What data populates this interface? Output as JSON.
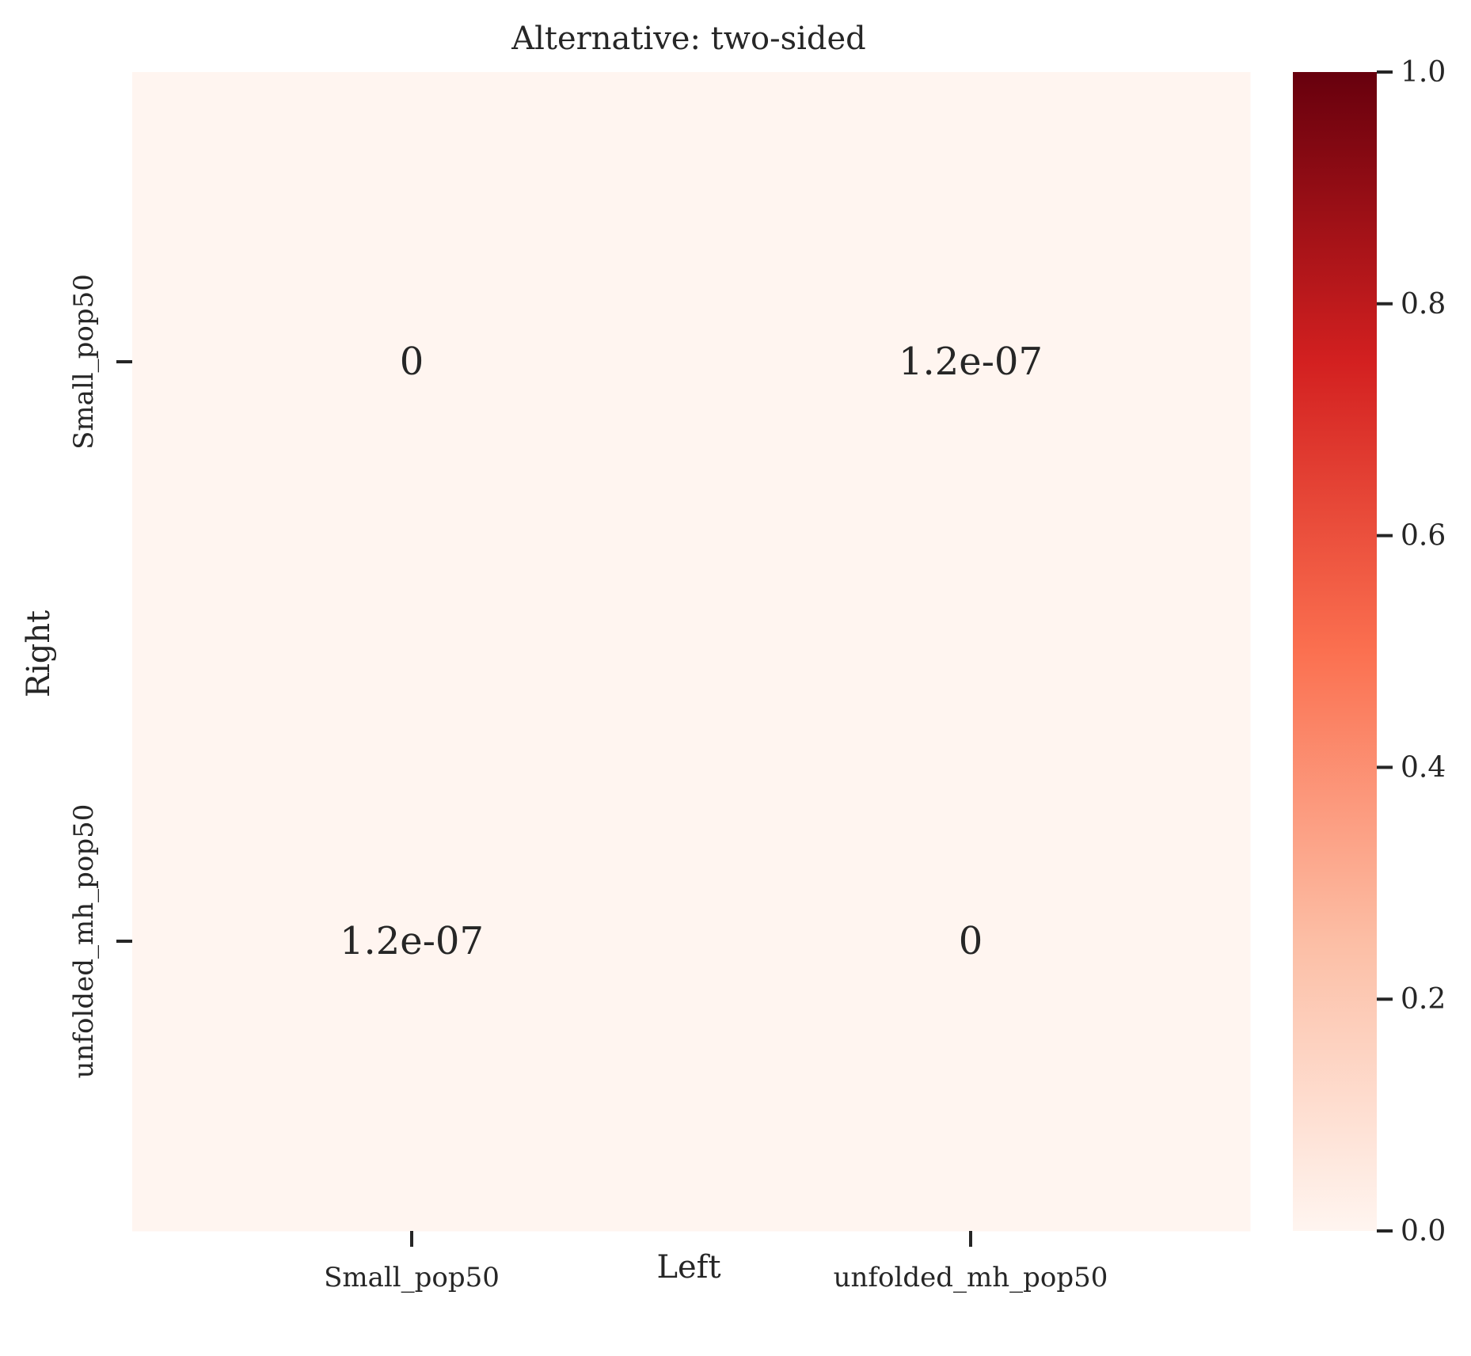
{
  "chart_data": {
    "type": "heatmap",
    "title": "Alternative: two-sided",
    "xlabel": "Left",
    "ylabel": "Right",
    "x_categories": [
      "Small_pop50",
      "unfolded_mh_pop50"
    ],
    "y_categories": [
      "Small_pop50",
      "unfolded_mh_pop50"
    ],
    "values": [
      [
        0,
        1.2e-07
      ],
      [
        1.2e-07,
        0
      ]
    ],
    "cell_labels": [
      [
        "0",
        "1.2e-07"
      ],
      [
        "1.2e-07",
        "0"
      ]
    ],
    "colormap": "Reds",
    "colorbar": {
      "min": 0.0,
      "max": 1.0,
      "ticks": [
        0.0,
        0.2,
        0.4,
        0.6,
        0.8,
        1.0
      ],
      "tick_labels": [
        "0.0",
        "0.2",
        "0.4",
        "0.6",
        "0.8",
        "1.0"
      ],
      "colors": [
        "#fff5f0",
        "#fcbea5",
        "#fb7050",
        "#d32020",
        "#67000d"
      ]
    }
  }
}
